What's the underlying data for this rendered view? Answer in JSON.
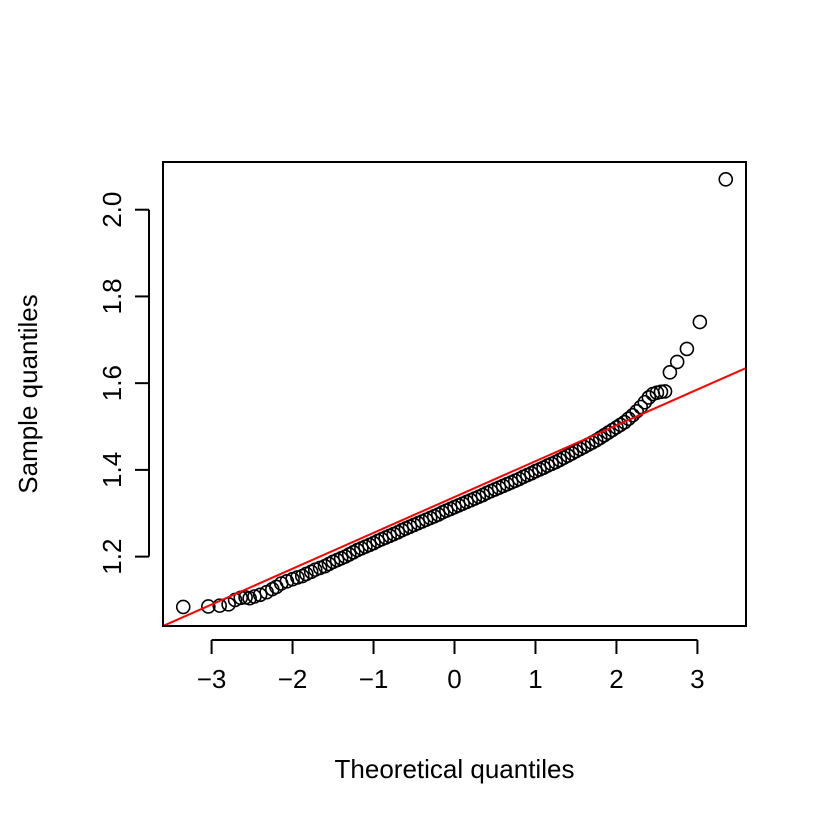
{
  "chart_data": {
    "type": "scatter",
    "title": "",
    "xlabel": "Theoretical quantiles",
    "ylabel": "Sample quantiles",
    "xlim": [
      -3.6,
      3.6
    ],
    "ylim": [
      1.04,
      2.11
    ],
    "xticks": [
      -3,
      -2,
      -1,
      0,
      1,
      2,
      3
    ],
    "xtick_labels": [
      "−3",
      "−2",
      "−1",
      "0",
      "1",
      "2",
      "3"
    ],
    "yticks": [
      1.2,
      1.4,
      1.6,
      1.8,
      2.0
    ],
    "ytick_labels": [
      "1.2",
      "1.4",
      "1.6",
      "1.8",
      "2.0"
    ],
    "grid": false,
    "marker": "open-circle",
    "point_color": "#000000",
    "reference_line": {
      "color": "#ff0000",
      "points": [
        [
          -3.6,
          1.04
        ],
        [
          3.6,
          1.635
        ]
      ]
    },
    "series": [
      {
        "points": [
          [
            -3.35,
            1.084
          ],
          [
            -3.04,
            1.085
          ],
          [
            -2.9,
            1.087
          ],
          [
            -2.79,
            1.09
          ],
          [
            -2.71,
            1.1
          ],
          [
            -2.64,
            1.105
          ],
          [
            -2.58,
            1.106
          ],
          [
            -2.53,
            1.104
          ],
          [
            -2.47,
            1.108
          ],
          [
            -2.4,
            1.112
          ],
          [
            -2.32,
            1.118
          ],
          [
            -2.25,
            1.125
          ],
          [
            -2.2,
            1.13
          ],
          [
            -2.14,
            1.138
          ],
          [
            -2.07,
            1.143
          ],
          [
            -2.0,
            1.148
          ],
          [
            -1.94,
            1.152
          ],
          [
            -1.88,
            1.155
          ],
          [
            -1.83,
            1.16
          ],
          [
            -1.77,
            1.165
          ],
          [
            -1.72,
            1.17
          ],
          [
            -1.66,
            1.174
          ],
          [
            -1.6,
            1.178
          ],
          [
            -1.55,
            1.183
          ],
          [
            -1.5,
            1.188
          ],
          [
            -1.45,
            1.192
          ],
          [
            -1.4,
            1.196
          ],
          [
            -1.35,
            1.2
          ],
          [
            -1.3,
            1.205
          ],
          [
            -1.25,
            1.21
          ],
          [
            -1.2,
            1.215
          ],
          [
            -1.15,
            1.219
          ],
          [
            -1.1,
            1.223
          ],
          [
            -1.05,
            1.227
          ],
          [
            -1.0,
            1.231
          ],
          [
            -0.95,
            1.236
          ],
          [
            -0.9,
            1.24
          ],
          [
            -0.85,
            1.244
          ],
          [
            -0.8,
            1.248
          ],
          [
            -0.75,
            1.252
          ],
          [
            -0.7,
            1.256
          ],
          [
            -0.65,
            1.261
          ],
          [
            -0.6,
            1.265
          ],
          [
            -0.55,
            1.269
          ],
          [
            -0.5,
            1.273
          ],
          [
            -0.45,
            1.277
          ],
          [
            -0.4,
            1.281
          ],
          [
            -0.35,
            1.285
          ],
          [
            -0.3,
            1.289
          ],
          [
            -0.25,
            1.293
          ],
          [
            -0.2,
            1.297
          ],
          [
            -0.15,
            1.302
          ],
          [
            -0.1,
            1.306
          ],
          [
            -0.05,
            1.31
          ],
          [
            0.0,
            1.314
          ],
          [
            0.05,
            1.318
          ],
          [
            0.1,
            1.322
          ],
          [
            0.15,
            1.326
          ],
          [
            0.2,
            1.33
          ],
          [
            0.25,
            1.334
          ],
          [
            0.3,
            1.338
          ],
          [
            0.35,
            1.342
          ],
          [
            0.4,
            1.347
          ],
          [
            0.45,
            1.351
          ],
          [
            0.5,
            1.355
          ],
          [
            0.55,
            1.359
          ],
          [
            0.6,
            1.363
          ],
          [
            0.65,
            1.367
          ],
          [
            0.7,
            1.371
          ],
          [
            0.75,
            1.375
          ],
          [
            0.8,
            1.379
          ],
          [
            0.85,
            1.384
          ],
          [
            0.9,
            1.388
          ],
          [
            0.95,
            1.392
          ],
          [
            1.0,
            1.397
          ],
          [
            1.05,
            1.401
          ],
          [
            1.1,
            1.405
          ],
          [
            1.15,
            1.41
          ],
          [
            1.2,
            1.414
          ],
          [
            1.25,
            1.418
          ],
          [
            1.3,
            1.423
          ],
          [
            1.35,
            1.428
          ],
          [
            1.4,
            1.433
          ],
          [
            1.45,
            1.438
          ],
          [
            1.5,
            1.443
          ],
          [
            1.55,
            1.448
          ],
          [
            1.6,
            1.453
          ],
          [
            1.65,
            1.458
          ],
          [
            1.7,
            1.463
          ],
          [
            1.75,
            1.468
          ],
          [
            1.8,
            1.474
          ],
          [
            1.85,
            1.48
          ],
          [
            1.9,
            1.486
          ],
          [
            1.95,
            1.492
          ],
          [
            2.0,
            1.498
          ],
          [
            2.05,
            1.504
          ],
          [
            2.1,
            1.51
          ],
          [
            2.15,
            1.518
          ],
          [
            2.2,
            1.526
          ],
          [
            2.25,
            1.535
          ],
          [
            2.3,
            1.545
          ],
          [
            2.35,
            1.556
          ],
          [
            2.4,
            1.567
          ],
          [
            2.45,
            1.575
          ],
          [
            2.5,
            1.578
          ],
          [
            2.55,
            1.58
          ],
          [
            2.6,
            1.581
          ],
          [
            2.66,
            1.625
          ],
          [
            2.75,
            1.649
          ],
          [
            2.87,
            1.679
          ],
          [
            3.03,
            1.741
          ],
          [
            3.35,
            2.07
          ]
        ]
      }
    ]
  }
}
